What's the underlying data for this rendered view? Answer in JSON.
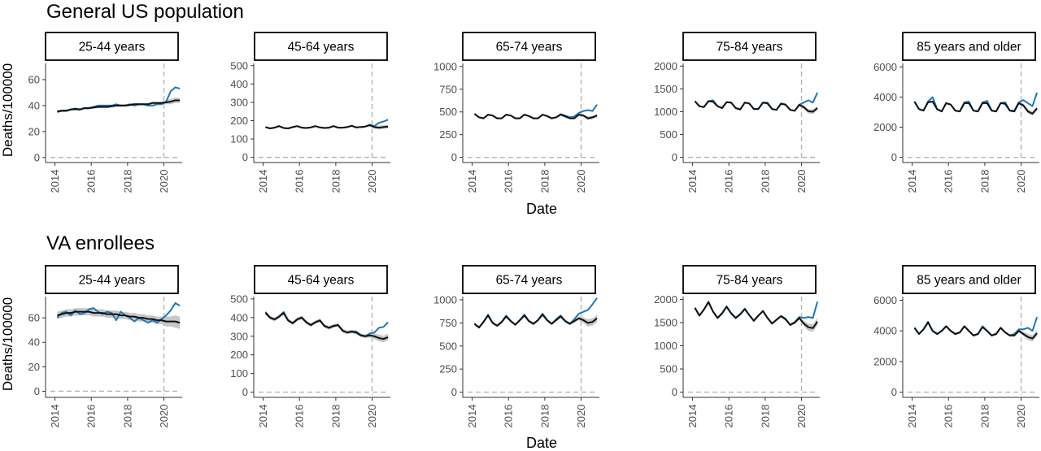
{
  "rows": [
    {
      "title": "General US population",
      "ylabel": "Deaths/100000",
      "xlabel": "Date",
      "panels": [
        {
          "strip": "25-44 years",
          "yticks": [
            0,
            20,
            40,
            60
          ],
          "ylim": [
            -2,
            75
          ]
        },
        {
          "strip": "45-64 years",
          "yticks": [
            0,
            100,
            200,
            300,
            400,
            500
          ],
          "ylim": [
            -15,
            530
          ]
        },
        {
          "strip": "65-74 years",
          "yticks": [
            0,
            250,
            500,
            750,
            1000
          ],
          "ylim": [
            -30,
            1070
          ]
        },
        {
          "strip": "75-84 years",
          "yticks": [
            0,
            500,
            1000,
            1500,
            2000
          ],
          "ylim": [
            -60,
            2130
          ]
        },
        {
          "strip": "85 years and older",
          "yticks": [
            0,
            2000,
            4000,
            6000
          ],
          "ylim": [
            -180,
            6450
          ]
        }
      ]
    },
    {
      "title": "VA enrollees",
      "ylabel": "Deaths/100000",
      "xlabel": "Date",
      "panels": [
        {
          "strip": "25-44 years",
          "yticks": [
            0,
            20,
            40,
            60
          ],
          "ylim": [
            -3,
            80
          ]
        },
        {
          "strip": "45-64 years",
          "yticks": [
            0,
            100,
            200,
            300,
            400,
            500
          ],
          "ylim": [
            -15,
            530
          ]
        },
        {
          "strip": "65-74 years",
          "yticks": [
            0,
            250,
            500,
            750,
            1000
          ],
          "ylim": [
            -30,
            1070
          ]
        },
        {
          "strip": "75-84 years",
          "yticks": [
            0,
            500,
            1000,
            1500,
            2000
          ],
          "ylim": [
            -60,
            2130
          ]
        },
        {
          "strip": "85 years and older",
          "yticks": [
            0,
            2000,
            4000,
            6000
          ],
          "ylim": [
            -180,
            6450
          ]
        }
      ]
    }
  ],
  "chart_data": {
    "type": "line",
    "x_ticks": [
      "2014",
      "2016",
      "2018",
      "2020"
    ],
    "xlim": [
      "2013-10",
      "2020-12"
    ],
    "pandemic_start_reference": "2020-01",
    "x": [
      "2014-Q1",
      "2014-Q2",
      "2014-Q3",
      "2014-Q4",
      "2015-Q1",
      "2015-Q2",
      "2015-Q3",
      "2015-Q4",
      "2016-Q1",
      "2016-Q2",
      "2016-Q3",
      "2016-Q4",
      "2017-Q1",
      "2017-Q2",
      "2017-Q3",
      "2017-Q4",
      "2018-Q1",
      "2018-Q2",
      "2018-Q3",
      "2018-Q4",
      "2019-Q1",
      "2019-Q2",
      "2019-Q3",
      "2019-Q4",
      "2020-Q1",
      "2020-Q2",
      "2020-Q3",
      "2020-Q4"
    ],
    "series_colors": {
      "observed": "#1f77b4",
      "expected": "#111111",
      "interval": "#bdbdbd"
    },
    "panels": [
      {
        "row": 0,
        "col": 0,
        "observed": [
          35,
          36,
          36,
          37,
          37,
          37,
          38,
          38,
          39,
          40,
          40,
          40,
          40,
          41,
          40,
          40,
          41,
          40,
          41,
          41,
          40,
          40,
          41,
          41,
          43,
          51,
          54,
          53
        ],
        "expected": [
          35.5,
          36,
          36,
          37,
          37.5,
          37,
          38,
          38,
          38.5,
          39,
          39,
          39,
          39.5,
          40,
          40,
          40,
          40.5,
          41,
          41,
          41,
          41,
          42,
          42,
          42,
          42.5,
          43,
          44,
          44
        ],
        "interval": [
          1,
          1,
          1,
          1,
          1,
          1,
          1,
          1,
          1,
          1,
          1,
          1,
          1,
          1,
          1,
          1,
          1,
          1,
          1,
          1,
          1,
          1,
          1,
          1,
          1.5,
          2,
          2,
          2
        ]
      },
      {
        "row": 0,
        "col": 1,
        "observed": [
          165,
          158,
          162,
          170,
          160,
          158,
          165,
          170,
          162,
          160,
          163,
          170,
          163,
          160,
          162,
          170,
          162,
          162,
          165,
          172,
          163,
          165,
          168,
          178,
          170,
          188,
          195,
          205
        ],
        "expected": [
          165,
          158,
          162,
          170,
          160,
          158,
          165,
          170,
          162,
          160,
          163,
          170,
          163,
          160,
          162,
          170,
          162,
          162,
          165,
          172,
          163,
          165,
          168,
          175,
          165,
          162,
          165,
          168
        ],
        "interval": [
          4,
          4,
          4,
          4,
          4,
          4,
          4,
          4,
          4,
          4,
          4,
          4,
          4,
          4,
          4,
          4,
          4,
          4,
          4,
          4,
          4,
          4,
          4,
          6,
          8,
          10,
          10,
          10
        ]
      },
      {
        "row": 0,
        "col": 2,
        "observed": [
          480,
          440,
          430,
          470,
          460,
          430,
          430,
          470,
          460,
          430,
          430,
          470,
          455,
          430,
          430,
          470,
          455,
          430,
          440,
          475,
          460,
          440,
          450,
          490,
          510,
          520,
          510,
          580
        ],
        "expected": [
          480,
          440,
          430,
          470,
          460,
          430,
          430,
          470,
          460,
          430,
          430,
          470,
          455,
          430,
          430,
          470,
          455,
          430,
          440,
          470,
          450,
          430,
          430,
          470,
          460,
          430,
          440,
          460
        ],
        "interval": [
          8,
          8,
          8,
          8,
          8,
          8,
          8,
          8,
          8,
          8,
          8,
          8,
          8,
          8,
          8,
          8,
          8,
          8,
          8,
          8,
          8,
          8,
          8,
          10,
          15,
          20,
          20,
          20
        ]
      },
      {
        "row": 0,
        "col": 3,
        "observed": [
          1230,
          1120,
          1100,
          1230,
          1250,
          1120,
          1080,
          1210,
          1200,
          1080,
          1050,
          1200,
          1180,
          1060,
          1060,
          1200,
          1200,
          1060,
          1040,
          1180,
          1160,
          1040,
          1020,
          1150,
          1200,
          1250,
          1200,
          1420
        ],
        "expected": [
          1230,
          1120,
          1100,
          1230,
          1220,
          1120,
          1080,
          1210,
          1200,
          1080,
          1050,
          1200,
          1180,
          1060,
          1060,
          1200,
          1180,
          1060,
          1040,
          1180,
          1150,
          1040,
          1020,
          1150,
          1100,
          1010,
          1000,
          1080
        ],
        "interval": [
          20,
          20,
          20,
          20,
          20,
          20,
          20,
          20,
          20,
          20,
          20,
          20,
          20,
          20,
          20,
          20,
          20,
          20,
          20,
          20,
          20,
          20,
          20,
          30,
          40,
          50,
          50,
          50
        ]
      },
      {
        "row": 0,
        "col": 4,
        "observed": [
          3700,
          3200,
          3100,
          3700,
          4000,
          3200,
          3050,
          3600,
          3500,
          3100,
          3050,
          3650,
          3700,
          3100,
          3050,
          3650,
          3750,
          3100,
          3050,
          3600,
          3650,
          3100,
          3100,
          3650,
          3800,
          3600,
          3400,
          4300
        ],
        "expected": [
          3700,
          3200,
          3100,
          3650,
          3700,
          3200,
          3050,
          3600,
          3500,
          3100,
          3050,
          3600,
          3600,
          3100,
          3050,
          3600,
          3600,
          3100,
          3050,
          3600,
          3550,
          3100,
          3050,
          3600,
          3450,
          3050,
          2900,
          3250
        ],
        "interval": [
          60,
          60,
          60,
          60,
          60,
          60,
          60,
          60,
          60,
          60,
          60,
          60,
          60,
          60,
          60,
          60,
          60,
          60,
          60,
          60,
          60,
          60,
          60,
          80,
          120,
          150,
          150,
          150
        ]
      },
      {
        "row": 1,
        "col": 0,
        "observed": [
          60,
          64,
          65,
          62,
          66,
          63,
          64,
          67,
          68,
          65,
          63,
          65,
          64,
          58,
          65,
          62,
          60,
          57,
          60,
          58,
          56,
          58,
          56,
          59,
          62,
          66,
          72,
          70
        ],
        "expected": [
          62,
          63,
          64,
          64,
          65,
          65,
          65,
          65,
          64,
          64,
          64,
          63,
          63,
          63,
          62,
          62,
          61,
          61,
          60,
          60,
          59,
          59,
          58,
          58,
          57,
          57,
          57,
          56
        ],
        "interval": [
          3,
          3,
          3,
          3,
          3,
          3,
          3,
          3,
          3,
          3,
          3,
          3,
          3,
          3,
          3,
          3,
          3,
          3,
          3,
          3,
          3,
          3,
          3,
          3,
          4,
          4,
          5,
          5
        ]
      },
      {
        "row": 1,
        "col": 1,
        "observed": [
          430,
          400,
          390,
          405,
          430,
          385,
          370,
          390,
          400,
          375,
          360,
          375,
          385,
          355,
          345,
          355,
          360,
          330,
          320,
          325,
          325,
          305,
          300,
          315,
          320,
          345,
          350,
          375
        ],
        "expected": [
          425,
          400,
          390,
          405,
          425,
          385,
          370,
          390,
          400,
          375,
          360,
          375,
          385,
          355,
          345,
          355,
          360,
          330,
          320,
          325,
          320,
          305,
          300,
          305,
          300,
          290,
          285,
          295
        ],
        "interval": [
          10,
          10,
          10,
          10,
          10,
          10,
          10,
          10,
          10,
          10,
          10,
          10,
          10,
          10,
          10,
          10,
          10,
          10,
          10,
          10,
          10,
          10,
          10,
          12,
          15,
          18,
          18,
          18
        ]
      },
      {
        "row": 1,
        "col": 2,
        "observed": [
          740,
          700,
          760,
          840,
          750,
          720,
          760,
          830,
          770,
          730,
          780,
          840,
          770,
          740,
          780,
          850,
          780,
          740,
          790,
          830,
          770,
          740,
          790,
          850,
          870,
          890,
          950,
          1020
        ],
        "expected": [
          740,
          700,
          760,
          830,
          750,
          720,
          760,
          820,
          770,
          730,
          780,
          830,
          770,
          740,
          780,
          840,
          780,
          740,
          780,
          820,
          770,
          740,
          770,
          800,
          780,
          750,
          760,
          800
        ],
        "interval": [
          15,
          15,
          15,
          15,
          15,
          15,
          15,
          15,
          15,
          15,
          15,
          15,
          15,
          15,
          15,
          15,
          15,
          15,
          15,
          15,
          15,
          15,
          15,
          20,
          30,
          40,
          40,
          40
        ]
      },
      {
        "row": 1,
        "col": 3,
        "observed": [
          1820,
          1650,
          1780,
          1950,
          1740,
          1600,
          1700,
          1850,
          1700,
          1600,
          1680,
          1800,
          1660,
          1540,
          1650,
          1750,
          1600,
          1480,
          1560,
          1640,
          1580,
          1450,
          1510,
          1620,
          1600,
          1620,
          1600,
          1950
        ],
        "expected": [
          1820,
          1650,
          1780,
          1940,
          1740,
          1600,
          1700,
          1840,
          1700,
          1600,
          1680,
          1790,
          1660,
          1540,
          1650,
          1750,
          1600,
          1480,
          1560,
          1640,
          1570,
          1450,
          1500,
          1600,
          1480,
          1400,
          1380,
          1520
        ],
        "interval": [
          30,
          30,
          30,
          30,
          30,
          30,
          30,
          30,
          30,
          30,
          30,
          30,
          30,
          30,
          30,
          30,
          30,
          30,
          30,
          30,
          30,
          30,
          30,
          40,
          60,
          80,
          80,
          80
        ]
      },
      {
        "row": 1,
        "col": 4,
        "observed": [
          4200,
          3800,
          4100,
          4600,
          4000,
          3800,
          4000,
          4300,
          4000,
          3800,
          3900,
          4300,
          4000,
          3700,
          3800,
          4300,
          4000,
          3700,
          3800,
          4200,
          3900,
          3700,
          3800,
          4100,
          4100,
          4200,
          4000,
          4900
        ],
        "expected": [
          4200,
          3800,
          4100,
          4550,
          4000,
          3800,
          4000,
          4300,
          4000,
          3800,
          3900,
          4300,
          4000,
          3700,
          3800,
          4250,
          4000,
          3700,
          3800,
          4200,
          3900,
          3700,
          3700,
          4000,
          3800,
          3600,
          3500,
          3850
        ],
        "interval": [
          80,
          80,
          80,
          80,
          80,
          80,
          80,
          80,
          80,
          80,
          80,
          80,
          80,
          80,
          80,
          80,
          80,
          80,
          80,
          80,
          80,
          80,
          80,
          100,
          150,
          200,
          200,
          200
        ]
      }
    ]
  }
}
